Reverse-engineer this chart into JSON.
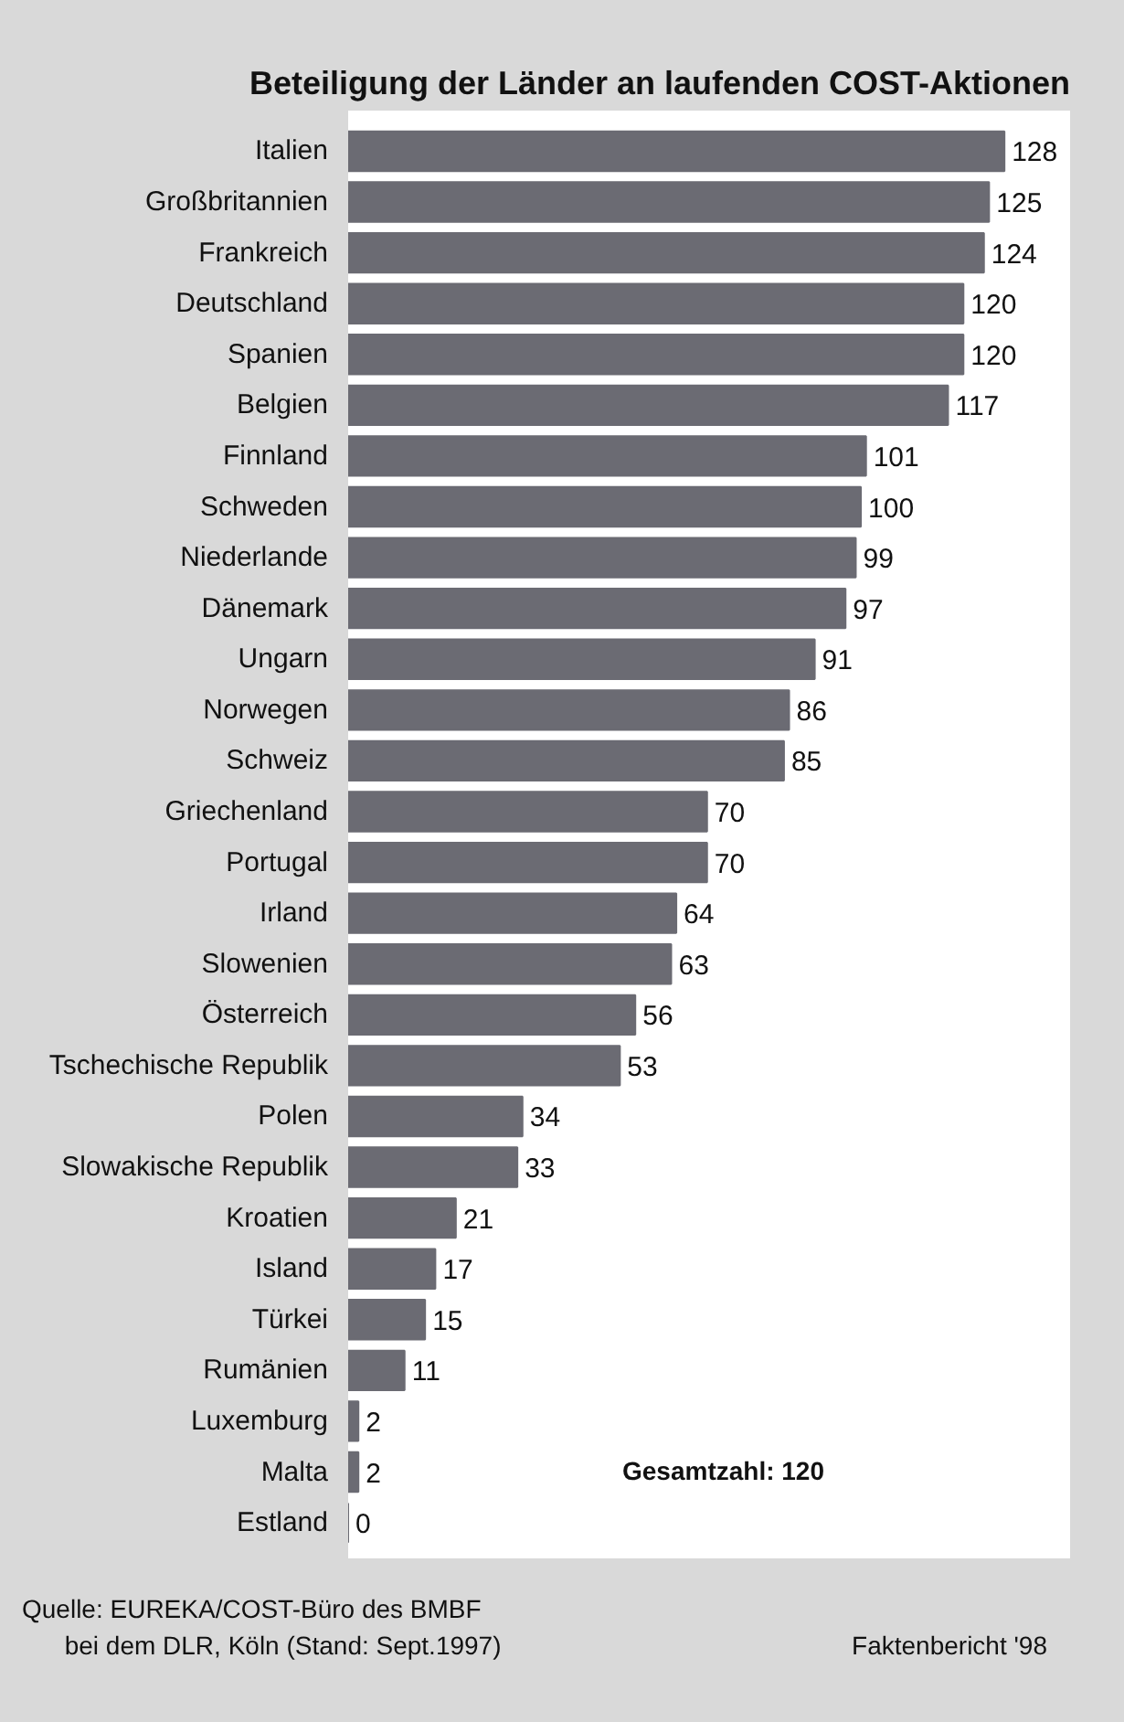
{
  "chart_data": {
    "type": "bar",
    "orientation": "horizontal",
    "title": "Beteiligung der Länder an laufenden COST-Aktionen",
    "categories": [
      "Italien",
      "Großbritannien",
      "Frankreich",
      "Deutschland",
      "Spanien",
      "Belgien",
      "Finnland",
      "Schweden",
      "Niederlande",
      "Dänemark",
      "Ungarn",
      "Norwegen",
      "Schweiz",
      "Griechenland",
      "Portugal",
      "Irland",
      "Slowenien",
      "Österreich",
      "Tschechische Republik",
      "Polen",
      "Slowakische Republik",
      "Kroatien",
      "Island",
      "Türkei",
      "Rumänien",
      "Luxemburg",
      "Malta",
      "Estland"
    ],
    "values": [
      128,
      125,
      124,
      120,
      120,
      117,
      101,
      100,
      99,
      97,
      91,
      86,
      85,
      70,
      70,
      64,
      63,
      56,
      53,
      34,
      33,
      21,
      17,
      15,
      11,
      2,
      2,
      0
    ],
    "color": "#6b6b73",
    "data_labels": true,
    "grid": false,
    "annotations": [
      "Gesamtzahl: 120",
      "Quelle: EUREKA/COST-Büro des BMBF\n      bei dem DLR, Köln (Stand: Sept.1997)",
      "Faktenbericht '98"
    ]
  }
}
